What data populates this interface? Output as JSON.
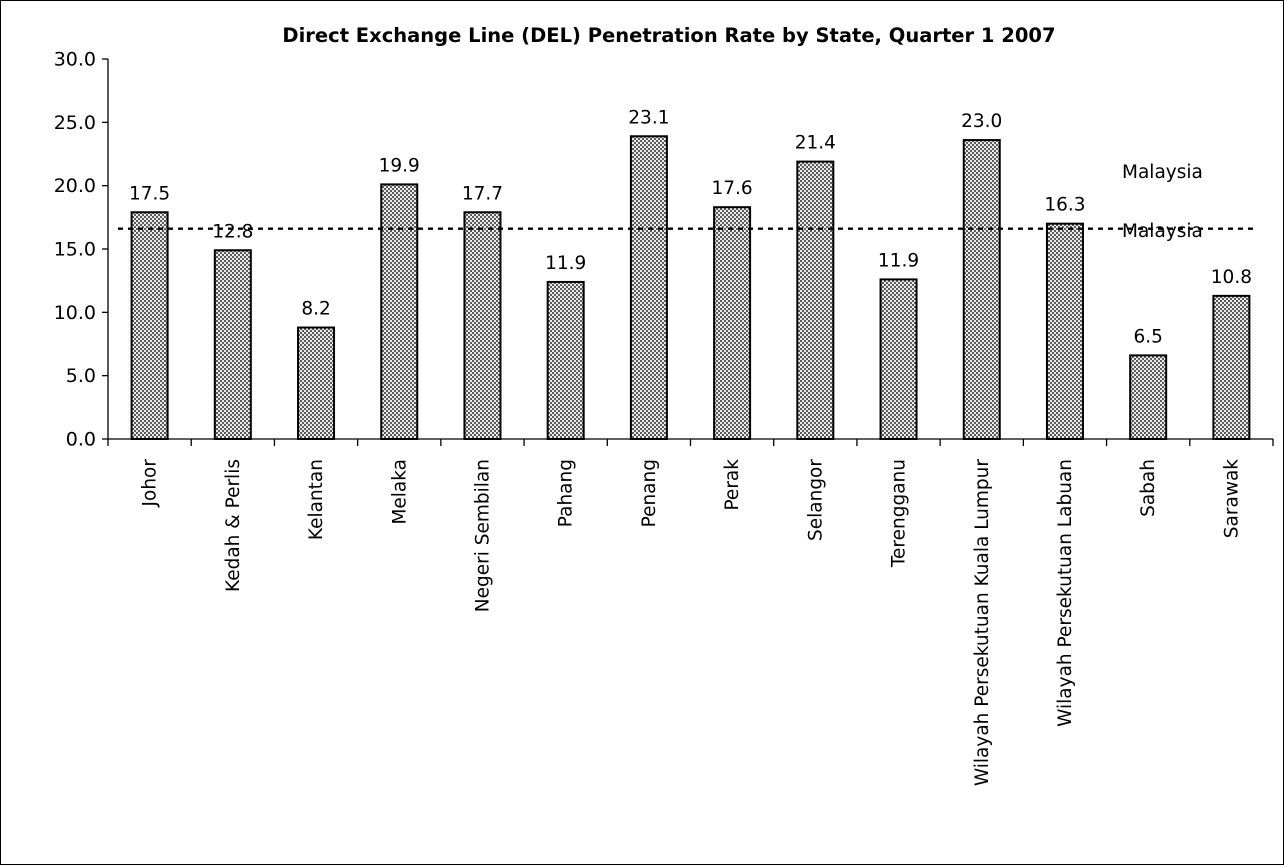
{
  "chart_data": {
    "type": "bar",
    "title": "Direct Exchange Line (DEL) Penetration Rate by State, Quarter 1 2007",
    "xlabel": "",
    "ylabel": "",
    "ylim": [
      0,
      30
    ],
    "yticks": [
      "0.0",
      "5.0",
      "10.0",
      "15.0",
      "20.0",
      "25.0",
      "30.0"
    ],
    "categories": [
      "Johor",
      "Kedah & Perlis",
      "Kelantan",
      "Melaka",
      "Negeri Sembilan",
      "Pahang",
      "Penang",
      "Perak",
      "Selangor",
      "Terengganu",
      "Wilayah Persekutuan Kuala Lumpur",
      "Wilayah Persekutuan Labuan",
      "Sabah",
      "Sarawak"
    ],
    "values": [
      17.5,
      12.8,
      8.2,
      19.9,
      17.7,
      11.9,
      23.1,
      17.6,
      21.4,
      11.9,
      23.0,
      16.3,
      6.5,
      10.8
    ],
    "bar_heights": [
      17.9,
      14.9,
      8.8,
      20.1,
      17.9,
      12.4,
      23.9,
      18.3,
      21.9,
      12.6,
      23.6,
      17.0,
      6.6,
      11.3
    ],
    "data_labels": [
      "17.5",
      "12.8",
      "8.2",
      "19.9",
      "17.7",
      "11.9",
      "23.1",
      "17.6",
      "21.4",
      "11.9",
      "23.0",
      "16.3",
      "6.5",
      "10.8"
    ],
    "reference_line": {
      "value": 16.6,
      "style": "dashed"
    },
    "reference_labels": [
      "Malaysia",
      "Malaysia"
    ],
    "grid": false,
    "legend": "none",
    "colors": {
      "bar_fill": "#ffffff",
      "bar_hatch": "#000000",
      "bar_stroke": "#000000",
      "text": "#000000"
    }
  }
}
